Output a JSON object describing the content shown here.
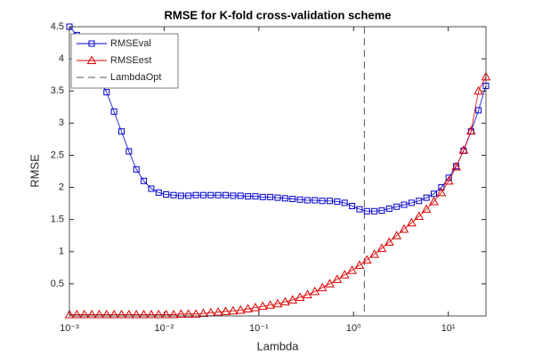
{
  "chart_data": {
    "type": "line",
    "title": "RMSE for K-fold cross-validation scheme",
    "x_label": "Lambda",
    "y_label": "RMSE",
    "x_log": true,
    "x": [
      0.001,
      0.001198,
      0.001436,
      0.00172,
      0.002061,
      0.00247,
      0.00296,
      0.003546,
      0.004249,
      0.005091,
      0.0061,
      0.00731,
      0.00876,
      0.0105,
      0.01258,
      0.01507,
      0.01806,
      0.02164,
      0.02593,
      0.03107,
      0.03723,
      0.04461,
      0.05345,
      0.06404,
      0.07673,
      0.09192,
      0.1101,
      0.132,
      0.1581,
      0.1895,
      0.227,
      0.272,
      0.3259,
      0.3905,
      0.4679,
      0.5607,
      0.6718,
      0.805,
      0.9646,
      1.156,
      1.385,
      1.659,
      1.988,
      2.382,
      2.854,
      3.42,
      4.099,
      4.911,
      5.885,
      7.051,
      8.449,
      10.12,
      12.13,
      14.53,
      17.42,
      20.87,
      25
    ],
    "series": [
      {
        "name": "RMSEval",
        "color": "#0000cc",
        "marker": "square",
        "values": [
          4.5,
          4.37,
          4.12,
          3.9,
          3.7,
          3.48,
          3.18,
          2.87,
          2.56,
          2.28,
          2.1,
          1.98,
          1.92,
          1.89,
          1.88,
          1.87,
          1.87,
          1.88,
          1.88,
          1.88,
          1.88,
          1.88,
          1.87,
          1.87,
          1.86,
          1.86,
          1.85,
          1.85,
          1.84,
          1.83,
          1.82,
          1.81,
          1.8,
          1.8,
          1.79,
          1.79,
          1.78,
          1.76,
          1.71,
          1.66,
          1.63,
          1.63,
          1.64,
          1.67,
          1.7,
          1.73,
          1.76,
          1.79,
          1.84,
          1.9,
          2.0,
          2.15,
          2.33,
          2.57,
          2.87,
          3.2,
          3.58
        ]
      },
      {
        "name": "RMSEest",
        "color": "#dd0000",
        "marker": "triangle",
        "values": [
          0.02,
          0.02,
          0.02,
          0.02,
          0.02,
          0.02,
          0.02,
          0.02,
          0.02,
          0.02,
          0.02,
          0.02,
          0.02,
          0.02,
          0.02,
          0.03,
          0.03,
          0.03,
          0.04,
          0.05,
          0.06,
          0.07,
          0.08,
          0.09,
          0.11,
          0.13,
          0.15,
          0.17,
          0.19,
          0.22,
          0.25,
          0.29,
          0.33,
          0.38,
          0.44,
          0.5,
          0.57,
          0.64,
          0.71,
          0.79,
          0.87,
          0.96,
          1.05,
          1.15,
          1.25,
          1.35,
          1.45,
          1.55,
          1.66,
          1.78,
          1.92,
          2.1,
          2.32,
          2.58,
          2.88,
          3.5,
          3.72
        ]
      }
    ],
    "vlines": [
      {
        "name": "LambdaOpt",
        "x": 1.3,
        "color": "#555555"
      }
    ],
    "xlim": [
      0.001,
      25
    ],
    "ylim": [
      0,
      4.5
    ],
    "xticks": [
      {
        "value": 0.001,
        "label": "10⁻³"
      },
      {
        "value": 0.01,
        "label": "10⁻²"
      },
      {
        "value": 0.1,
        "label": "10⁻¹"
      },
      {
        "value": 1,
        "label": "10⁰"
      },
      {
        "value": 10,
        "label": "10¹"
      }
    ],
    "yticks": [
      0.5,
      1,
      1.5,
      2,
      2.5,
      3,
      3.5,
      4,
      4.5
    ],
    "legend": "upper-left"
  }
}
